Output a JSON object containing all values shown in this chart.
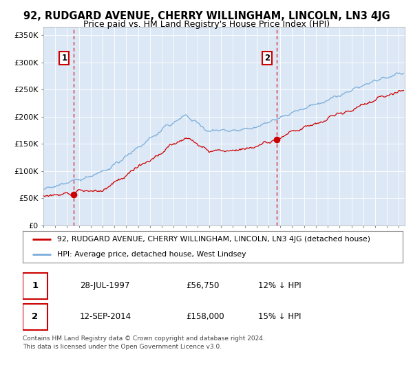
{
  "title": "92, RUDGARD AVENUE, CHERRY WILLINGHAM, LINCOLN, LN3 4JG",
  "subtitle": "Price paid vs. HM Land Registry's House Price Index (HPI)",
  "yticks": [
    0,
    50000,
    100000,
    150000,
    200000,
    250000,
    300000,
    350000
  ],
  "ytick_labels": [
    "£0",
    "£50K",
    "£100K",
    "£150K",
    "£200K",
    "£250K",
    "£300K",
    "£350K"
  ],
  "ylim": [
    0,
    365000
  ],
  "xlim_start": 1995.0,
  "xlim_end": 2025.5,
  "legend_line1": "92, RUDGARD AVENUE, CHERRY WILLINGHAM, LINCOLN, LN3 4JG (detached house)",
  "legend_line2": "HPI: Average price, detached house, West Lindsey",
  "point1_date": "28-JUL-1997",
  "point1_price": "£56,750",
  "point1_hpi": "12% ↓ HPI",
  "point1_x": 1997.57,
  "point1_y": 56750,
  "point2_date": "12-SEP-2014",
  "point2_price": "£158,000",
  "point2_hpi": "15% ↓ HPI",
  "point2_x": 2014.7,
  "point2_y": 158000,
  "sale_line_color": "#cc0000",
  "hpi_line_color": "#7aadda",
  "plot_bg_color": "#dce8f5",
  "footer": "Contains HM Land Registry data © Crown copyright and database right 2024.\nThis data is licensed under the Open Government Licence v3.0.",
  "title_fontsize": 10.5,
  "subtitle_fontsize": 9.0
}
